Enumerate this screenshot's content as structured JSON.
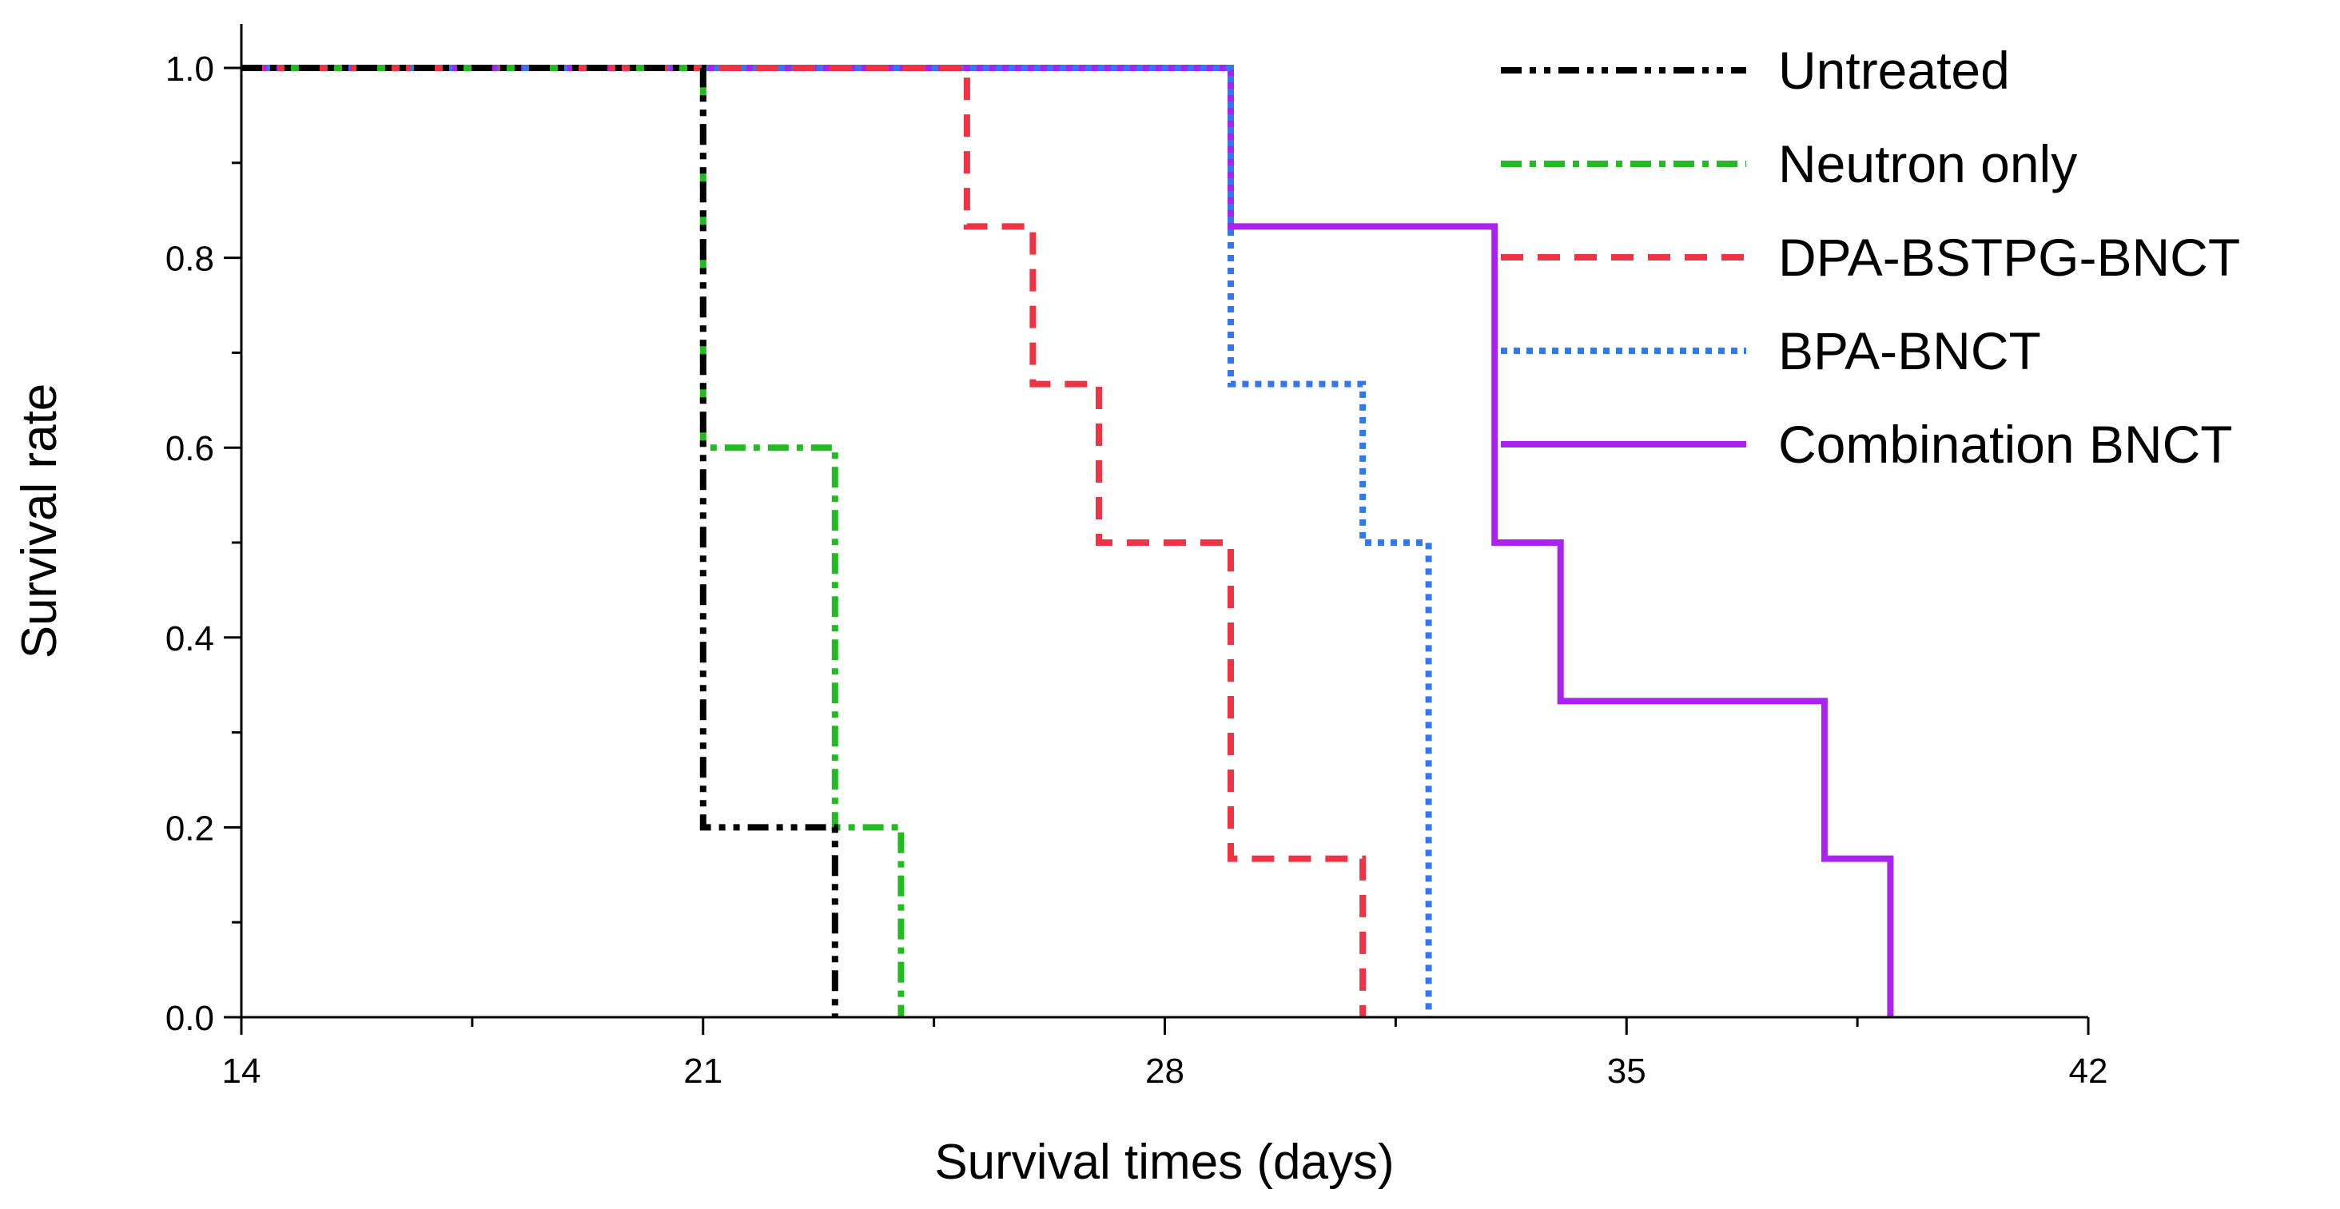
{
  "chart_data": {
    "type": "line",
    "style": "step",
    "title": "",
    "xlabel": "Survival times (days)",
    "ylabel": "Survival rate",
    "xlim": [
      14,
      42
    ],
    "ylim": [
      0,
      1.05
    ],
    "x_major_ticks": [
      14,
      21,
      28,
      35,
      42
    ],
    "x_tick_labels": [
      "14",
      "21",
      "28",
      "35",
      "42"
    ],
    "y_major_ticks": [
      0,
      0.2,
      0.4,
      0.6,
      0.8,
      1.0
    ],
    "y_tick_labels": [
      "0.0",
      "0.2",
      "0.4",
      "0.6",
      "0.8",
      "1.0"
    ],
    "grid": false,
    "legend_position": "top-right",
    "series": [
      {
        "name": "Untreated",
        "color": "#000000",
        "dash": "dash-dot-dot",
        "x": [
          14,
          21,
          21,
          23,
          23
        ],
        "y": [
          1.0,
          1.0,
          0.2,
          0.2,
          0.0
        ]
      },
      {
        "name": "Neutron only",
        "color": "#22bb22",
        "dash": "dash-dot",
        "x": [
          14,
          21,
          21,
          23,
          23,
          24,
          24
        ],
        "y": [
          1.0,
          1.0,
          0.6,
          0.6,
          0.2,
          0.2,
          0.0
        ]
      },
      {
        "name": "DPA-BSTPG-BNCT",
        "color": "#ee3344",
        "dash": "dash",
        "x": [
          14,
          25,
          25,
          26,
          26,
          27,
          27,
          29,
          29,
          31,
          31
        ],
        "y": [
          1.0,
          1.0,
          0.833,
          0.833,
          0.667,
          0.667,
          0.5,
          0.5,
          0.167,
          0.167,
          0.0
        ]
      },
      {
        "name": "BPA-BNCT",
        "color": "#3377ee",
        "dash": "dot",
        "x": [
          14,
          29,
          29,
          31,
          31,
          32,
          32
        ],
        "y": [
          1.0,
          1.0,
          0.667,
          0.667,
          0.5,
          0.5,
          0.0
        ]
      },
      {
        "name": "Combination BNCT",
        "color": "#aa22ee",
        "dash": "solid",
        "x": [
          14,
          29,
          29,
          33,
          33,
          34,
          34,
          38,
          38,
          39,
          39
        ],
        "y": [
          1.0,
          1.0,
          0.833,
          0.833,
          0.5,
          0.5,
          0.333,
          0.333,
          0.167,
          0.167,
          0.0
        ]
      }
    ]
  }
}
